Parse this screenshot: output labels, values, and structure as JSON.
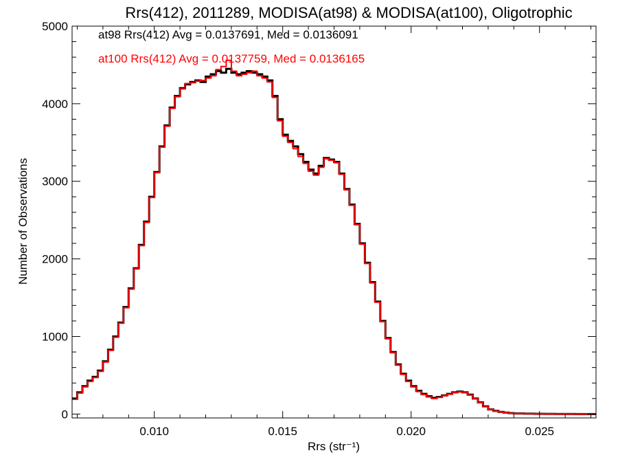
{
  "chart_data": {
    "type": "line",
    "title": "Rrs(412), 2011289, MODISA(at98) & MODISA(at100), Oligotrophic",
    "xlabel": "Rrs (str⁻¹)",
    "ylabel": "Number of Observations",
    "xlim": [
      0.0068,
      0.0272
    ],
    "ylim": [
      -50,
      5000
    ],
    "xticks": [
      "0.010",
      "0.015",
      "0.020",
      "0.025"
    ],
    "yticks": [
      "0",
      "1000",
      "2000",
      "3000",
      "4000",
      "5000"
    ],
    "grid": false,
    "annotations": [
      "at98 Rrs(412) Avg = 0.0137691, Med = 0.0136091",
      "at100 Rrs(412) Avg = 0.0137759, Med = 0.0136165"
    ],
    "series": [
      {
        "color": "#000000",
        "x": [
          0.0068,
          0.007,
          0.0072,
          0.0074,
          0.0076,
          0.0078,
          0.008,
          0.0082,
          0.0084,
          0.0086,
          0.0088,
          0.009,
          0.0092,
          0.0094,
          0.0096,
          0.0098,
          0.01,
          0.0102,
          0.0104,
          0.0106,
          0.0108,
          0.011,
          0.0112,
          0.0114,
          0.0116,
          0.0118,
          0.012,
          0.0122,
          0.0124,
          0.0126,
          0.0128,
          0.013,
          0.0132,
          0.0134,
          0.0136,
          0.0138,
          0.014,
          0.0142,
          0.0144,
          0.0146,
          0.0148,
          0.015,
          0.0152,
          0.0154,
          0.0156,
          0.0158,
          0.016,
          0.0162,
          0.0164,
          0.0166,
          0.0168,
          0.017,
          0.0172,
          0.0174,
          0.0176,
          0.0178,
          0.018,
          0.0182,
          0.0184,
          0.0186,
          0.0188,
          0.019,
          0.0192,
          0.0194,
          0.0196,
          0.0198,
          0.02,
          0.0202,
          0.0204,
          0.0206,
          0.0208,
          0.021,
          0.0212,
          0.0214,
          0.0216,
          0.0218,
          0.022,
          0.0222,
          0.0224,
          0.0226,
          0.0228,
          0.023,
          0.0232,
          0.0234,
          0.0236,
          0.0238,
          0.024,
          0.0244,
          0.0248,
          0.0252,
          0.0256,
          0.026,
          0.0264,
          0.0268,
          0.0272
        ],
        "y": [
          200,
          280,
          360,
          430,
          480,
          560,
          680,
          830,
          1000,
          1180,
          1380,
          1620,
          1880,
          2180,
          2480,
          2800,
          3120,
          3450,
          3720,
          3950,
          4100,
          4200,
          4250,
          4280,
          4300,
          4280,
          4350,
          4380,
          4420,
          4400,
          4450,
          4400,
          4380,
          4400,
          4420,
          4400,
          4380,
          4350,
          4300,
          4100,
          3800,
          3600,
          3520,
          3450,
          3350,
          3250,
          3150,
          3100,
          3200,
          3300,
          3280,
          3250,
          3100,
          2900,
          2700,
          2450,
          2200,
          1950,
          1700,
          1450,
          1200,
          980,
          800,
          640,
          520,
          430,
          360,
          300,
          260,
          230,
          210,
          220,
          240,
          260,
          280,
          290,
          280,
          250,
          200,
          150,
          100,
          60,
          40,
          28,
          18,
          12,
          8,
          5,
          3,
          2,
          1,
          1,
          0,
          0,
          0
        ]
      },
      {
        "color": "#ff0000",
        "x": [
          0.0068,
          0.007,
          0.0072,
          0.0074,
          0.0076,
          0.0078,
          0.008,
          0.0082,
          0.0084,
          0.0086,
          0.0088,
          0.009,
          0.0092,
          0.0094,
          0.0096,
          0.0098,
          0.01,
          0.0102,
          0.0104,
          0.0106,
          0.0108,
          0.011,
          0.0112,
          0.0114,
          0.0116,
          0.0118,
          0.012,
          0.0122,
          0.0124,
          0.0126,
          0.0128,
          0.013,
          0.0132,
          0.0134,
          0.0136,
          0.0138,
          0.014,
          0.0142,
          0.0144,
          0.0146,
          0.0148,
          0.015,
          0.0152,
          0.0154,
          0.0156,
          0.0158,
          0.016,
          0.0162,
          0.0164,
          0.0166,
          0.0168,
          0.017,
          0.0172,
          0.0174,
          0.0176,
          0.0178,
          0.018,
          0.0182,
          0.0184,
          0.0186,
          0.0188,
          0.019,
          0.0192,
          0.0194,
          0.0196,
          0.0198,
          0.02,
          0.0202,
          0.0204,
          0.0206,
          0.0208,
          0.021,
          0.0212,
          0.0214,
          0.0216,
          0.0218,
          0.022,
          0.0222,
          0.0224,
          0.0226,
          0.0228,
          0.023,
          0.0232,
          0.0234,
          0.0236,
          0.0238,
          0.024,
          0.0244,
          0.0248,
          0.0252,
          0.0256,
          0.026,
          0.0264,
          0.0268,
          0.0272
        ],
        "y": [
          190,
          270,
          350,
          420,
          470,
          550,
          670,
          820,
          990,
          1170,
          1370,
          1610,
          1870,
          2170,
          2470,
          2790,
          3110,
          3440,
          3710,
          3940,
          4090,
          4190,
          4260,
          4270,
          4290,
          4300,
          4330,
          4360,
          4440,
          4480,
          4560,
          4420,
          4360,
          4380,
          4400,
          4420,
          4360,
          4330,
          4280,
          4080,
          3780,
          3580,
          3500,
          3420,
          3320,
          3230,
          3130,
          3080,
          3180,
          3290,
          3270,
          3240,
          3090,
          2890,
          2690,
          2440,
          2190,
          1940,
          1690,
          1440,
          1190,
          970,
          790,
          630,
          510,
          420,
          350,
          290,
          250,
          220,
          200,
          215,
          235,
          255,
          275,
          285,
          275,
          245,
          195,
          145,
          95,
          58,
          38,
          26,
          17,
          11,
          7,
          5,
          3,
          2,
          1,
          1,
          0,
          0,
          0
        ]
      }
    ]
  }
}
